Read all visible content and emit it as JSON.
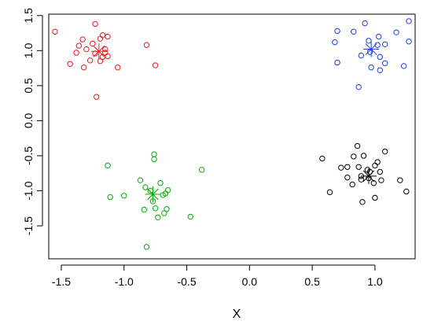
{
  "chart_data": {
    "type": "scatter",
    "title": "",
    "xlabel": "X",
    "ylabel": "",
    "xlim": [
      -1.6,
      1.32
    ],
    "ylim": [
      -1.97,
      1.52
    ],
    "xticks": [
      -1.5,
      -1.0,
      -0.5,
      0.0,
      0.5,
      1.0
    ],
    "xtick_labels": [
      "-1.5",
      "-1.0",
      "-0.5",
      "0.0",
      "0.5",
      "1.0"
    ],
    "yticks": [
      -1.5,
      -1.0,
      -0.5,
      0.0,
      0.5,
      1.0,
      1.5
    ],
    "ytick_labels": [
      "-1.5",
      "-1.0",
      "-0.5",
      "0.0",
      "0.5",
      "1.0",
      "1.5"
    ],
    "grid": false,
    "legend": "none",
    "series": [
      {
        "color": "#e31a1c",
        "marker": "open-circle",
        "points": [
          [
            -1.55,
            1.27
          ],
          [
            -1.23,
            1.38
          ],
          [
            -1.43,
            0.81
          ],
          [
            -1.38,
            0.97
          ],
          [
            -1.36,
            1.07
          ],
          [
            -1.33,
            1.16
          ],
          [
            -1.32,
            0.76
          ],
          [
            -1.3,
            1.02
          ],
          [
            -1.27,
            0.86
          ],
          [
            -1.25,
            1.1
          ],
          [
            -1.23,
            0.96
          ],
          [
            -1.22,
            0.34
          ],
          [
            -1.19,
            1.17
          ],
          [
            -1.17,
            0.91
          ],
          [
            -1.17,
            1.22
          ],
          [
            -1.15,
            0.97
          ],
          [
            -1.13,
            1.2
          ],
          [
            -1.15,
            1.02
          ],
          [
            -1.13,
            0.92
          ],
          [
            -1.05,
            0.76
          ],
          [
            -0.82,
            1.08
          ],
          [
            -0.75,
            0.79
          ],
          [
            -1.19,
            0.85
          ]
        ],
        "centroid": [
          -1.2,
          0.99
        ]
      },
      {
        "color": "#1f3fdb",
        "marker": "open-circle",
        "points": [
          [
            0.7,
            1.28
          ],
          [
            0.68,
            1.12
          ],
          [
            0.7,
            0.83
          ],
          [
            0.83,
            1.27
          ],
          [
            0.87,
            0.48
          ],
          [
            0.89,
            0.93
          ],
          [
            0.92,
            1.39
          ],
          [
            0.95,
            1.14
          ],
          [
            0.97,
            0.76
          ],
          [
            1.02,
            1.08
          ],
          [
            1.03,
            1.2
          ],
          [
            1.04,
            0.72
          ],
          [
            1.04,
            0.91
          ],
          [
            1.08,
            1.09
          ],
          [
            1.08,
            0.82
          ],
          [
            1.17,
            1.26
          ],
          [
            1.23,
            0.78
          ],
          [
            1.27,
            1.42
          ],
          [
            1.27,
            1.13
          ],
          [
            0.96,
            0.98
          ]
        ],
        "centroid": [
          0.97,
          1.02
        ]
      },
      {
        "color": "#00b000",
        "marker": "open-circle",
        "points": [
          [
            -1.13,
            -0.64
          ],
          [
            -1.11,
            -1.09
          ],
          [
            -1.0,
            -1.07
          ],
          [
            -0.87,
            -0.85
          ],
          [
            -0.84,
            -1.27
          ],
          [
            -0.83,
            -0.95
          ],
          [
            -0.82,
            -1.8
          ],
          [
            -0.79,
            -1.0
          ],
          [
            -0.77,
            -1.15
          ],
          [
            -0.76,
            -0.48
          ],
          [
            -0.76,
            -0.55
          ],
          [
            -0.75,
            -1.25
          ],
          [
            -0.73,
            -1.38
          ],
          [
            -0.71,
            -0.89
          ],
          [
            -0.69,
            -1.06
          ],
          [
            -0.68,
            -1.32
          ],
          [
            -0.67,
            -1.04
          ],
          [
            -0.66,
            -1.26
          ],
          [
            -0.65,
            -0.99
          ],
          [
            -0.47,
            -1.37
          ],
          [
            -0.38,
            -0.7
          ]
        ],
        "centroid": [
          -0.77,
          -1.05
        ]
      },
      {
        "color": "#000000",
        "marker": "open-circle",
        "points": [
          [
            0.58,
            -0.54
          ],
          [
            0.64,
            -1.02
          ],
          [
            0.73,
            -0.67
          ],
          [
            0.78,
            -0.81
          ],
          [
            0.82,
            -0.91
          ],
          [
            0.83,
            -0.51
          ],
          [
            0.86,
            -0.36
          ],
          [
            0.87,
            -0.66
          ],
          [
            0.89,
            -0.79
          ],
          [
            0.89,
            -0.84
          ],
          [
            0.9,
            -1.16
          ],
          [
            0.91,
            -0.5
          ],
          [
            0.94,
            -0.7
          ],
          [
            0.95,
            -0.82
          ],
          [
            0.96,
            -0.73
          ],
          [
            0.99,
            -0.89
          ],
          [
            1.0,
            -1.1
          ],
          [
            1.0,
            -0.64
          ],
          [
            1.02,
            -0.59
          ],
          [
            1.04,
            -0.73
          ],
          [
            1.05,
            -0.85
          ],
          [
            1.08,
            -0.44
          ],
          [
            1.2,
            -0.85
          ],
          [
            1.25,
            -1.01
          ],
          [
            0.78,
            -0.66
          ]
        ],
        "centroid": [
          0.95,
          -0.79
        ]
      }
    ]
  }
}
